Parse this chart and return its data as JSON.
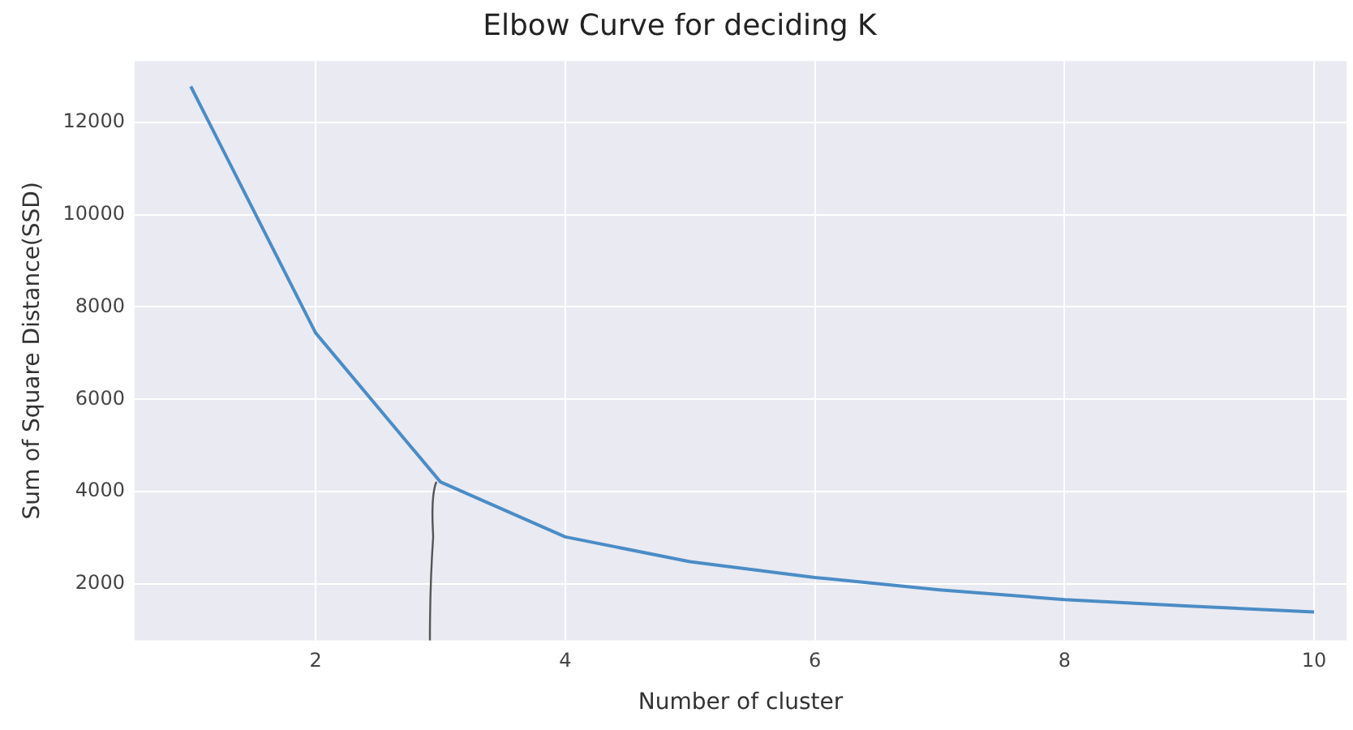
{
  "chart_data": {
    "type": "line",
    "title": "Elbow Curve for deciding K",
    "xlabel": "Number of cluster",
    "ylabel": "Sum of Square Distance(SSD)",
    "x": [
      1,
      2,
      3,
      4,
      5,
      6,
      7,
      8,
      9,
      10
    ],
    "series": [
      {
        "color": "#4a8cc6",
        "values": [
          12780,
          7440,
          4210,
          3020,
          2480,
          2140,
          1870,
          1660,
          1520,
          1390
        ]
      }
    ],
    "xlim": [
      0.55,
      10.26
    ],
    "xticks": [
      2,
      4,
      6,
      8,
      10
    ],
    "ylim": [
      775,
      13330
    ],
    "yticks": [
      2000,
      4000,
      6000,
      8000,
      10000,
      12000
    ],
    "grid": true,
    "legend": false,
    "marker": "none",
    "line_style": "solid"
  }
}
